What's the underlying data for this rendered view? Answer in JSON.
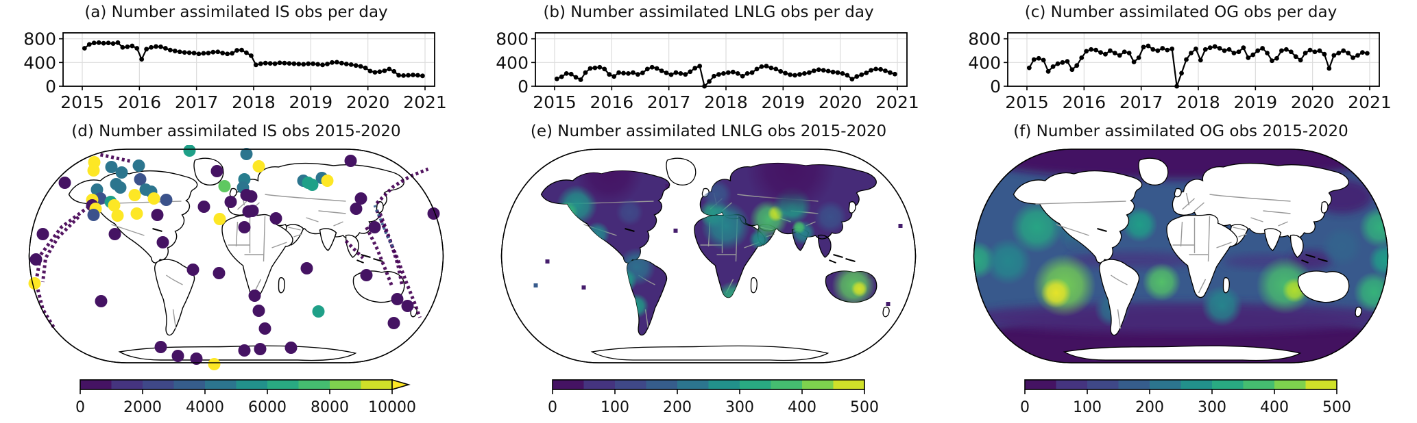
{
  "figure": {
    "background": "#ffffff"
  },
  "panels": {
    "a": {
      "title": "(a) Number assimilated IS obs per day"
    },
    "b": {
      "title": "(b) Number assimilated LNLG obs per day"
    },
    "c": {
      "title": "(c) Number assimilated OG obs per day"
    },
    "d": {
      "title": "(d) Number assimilated IS obs 2015-2020"
    },
    "e": {
      "title": "(e) Number assimilated LNLG obs 2015-2020"
    },
    "f": {
      "title": "(f) Number assimilated OG obs 2015-2020"
    }
  },
  "colors": {
    "line": "#000000",
    "grid": "#dcdcdc",
    "axis": "#000000",
    "coast": "#000000",
    "border_gray": "#999999",
    "track_purple": "#440154",
    "track_blue": "#355f8d",
    "viridis_stops": [
      [
        0,
        "#440154"
      ],
      [
        0.14,
        "#46327e"
      ],
      [
        0.27,
        "#3e4c8a"
      ],
      [
        0.4,
        "#31688e"
      ],
      [
        0.5,
        "#26828e"
      ],
      [
        0.6,
        "#1fa088"
      ],
      [
        0.72,
        "#36b779"
      ],
      [
        0.83,
        "#6ece58"
      ],
      [
        0.92,
        "#b5de2b"
      ],
      [
        1,
        "#fde725"
      ]
    ]
  },
  "chart_data": [
    {
      "id": "a",
      "type": "line",
      "title": "(a) Number assimilated IS obs per day",
      "x_ticks": [
        2015,
        2016,
        2017,
        2018,
        2019,
        2020,
        2021
      ],
      "y_ticks": [
        0,
        400,
        800
      ],
      "ylim": [
        0,
        900
      ],
      "x_start": 2015.04,
      "x_step": 0.083333,
      "values": [
        640,
        705,
        730,
        735,
        725,
        730,
        720,
        735,
        655,
        665,
        680,
        640,
        455,
        625,
        655,
        670,
        665,
        640,
        610,
        595,
        580,
        570,
        565,
        560,
        545,
        555,
        560,
        575,
        580,
        560,
        545,
        555,
        605,
        610,
        565,
        515,
        360,
        380,
        390,
        385,
        380,
        395,
        390,
        385,
        380,
        375,
        370,
        380,
        380,
        370,
        360,
        375,
        400,
        405,
        390,
        375,
        365,
        350,
        335,
        310,
        255,
        235,
        245,
        260,
        290,
        250,
        185,
        180,
        185,
        190,
        185,
        175
      ]
    },
    {
      "id": "b",
      "type": "line",
      "title": "(b) Number assimilated LNLG obs per day",
      "x_ticks": [
        2015,
        2016,
        2017,
        2018,
        2019,
        2020,
        2021
      ],
      "y_ticks": [
        0,
        400,
        800
      ],
      "ylim": [
        0,
        900
      ],
      "x_start": 2015.04,
      "x_step": 0.083333,
      "values": [
        125,
        160,
        215,
        205,
        150,
        110,
        230,
        300,
        310,
        320,
        290,
        200,
        165,
        230,
        220,
        215,
        230,
        200,
        225,
        290,
        320,
        300,
        260,
        225,
        195,
        230,
        215,
        200,
        245,
        305,
        340,
        0,
        80,
        170,
        200,
        215,
        230,
        240,
        215,
        170,
        215,
        230,
        290,
        330,
        340,
        310,
        290,
        250,
        220,
        195,
        185,
        200,
        215,
        230,
        260,
        280,
        270,
        255,
        240,
        230,
        215,
        185,
        120,
        165,
        195,
        225,
        270,
        290,
        285,
        260,
        230,
        205
      ]
    },
    {
      "id": "c",
      "type": "line",
      "title": "(c) Number assimilated OG obs per day",
      "x_ticks": [
        2015,
        2016,
        2017,
        2018,
        2019,
        2020,
        2021
      ],
      "y_ticks": [
        0,
        400,
        800
      ],
      "ylim": [
        0,
        900
      ],
      "x_start": 2015.04,
      "x_step": 0.083333,
      "values": [
        310,
        450,
        470,
        440,
        250,
        330,
        380,
        400,
        420,
        280,
        350,
        480,
        590,
        620,
        610,
        570,
        540,
        600,
        560,
        520,
        580,
        560,
        410,
        480,
        660,
        680,
        620,
        600,
        640,
        610,
        630,
        0,
        220,
        450,
        560,
        630,
        440,
        620,
        650,
        670,
        640,
        600,
        620,
        560,
        580,
        650,
        480,
        530,
        600,
        640,
        560,
        430,
        470,
        600,
        620,
        580,
        500,
        440,
        560,
        610,
        580,
        600,
        540,
        300,
        520,
        560,
        600,
        560,
        480,
        520,
        570,
        555
      ]
    },
    {
      "id": "d",
      "type": "scatter_map",
      "title": "(d) Number assimilated IS obs 2015-2020",
      "colorbar": {
        "min": 0,
        "max": 10000,
        "ticks": [
          0,
          2000,
          4000,
          6000,
          8000,
          10000
        ],
        "extend": "max"
      },
      "dots": [
        [
          242,
          8,
          6000
        ],
        [
          325,
          13,
          4500
        ],
        [
          343,
          31,
          10000
        ],
        [
          103,
          25,
          10000
        ],
        [
          102,
          37,
          10000
        ],
        [
          128,
          32,
          4500
        ],
        [
          143,
          40,
          4500
        ],
        [
          168,
          30,
          4500
        ],
        [
          170,
          50,
          3000
        ],
        [
          135,
          57,
          4500
        ],
        [
          141,
          62,
          4500
        ],
        [
          178,
          65,
          4500
        ],
        [
          186,
          68,
          4500
        ],
        [
          107,
          65,
          4500
        ],
        [
          112,
          78,
          3000
        ],
        [
          127,
          83,
          6000
        ],
        [
          132,
          88,
          10000
        ],
        [
          162,
          73,
          10000
        ],
        [
          190,
          78,
          10000
        ],
        [
          208,
          80,
          3000
        ],
        [
          100,
          80,
          10000
        ],
        [
          100,
          88,
          500
        ],
        [
          105,
          93,
          10000
        ],
        [
          102,
          102,
          3000
        ],
        [
          137,
          103,
          10000
        ],
        [
          165,
          100,
          10000
        ],
        [
          195,
          102,
          500
        ],
        [
          133,
          130,
          500
        ],
        [
          203,
          142,
          500
        ],
        [
          60,
          55,
          500
        ],
        [
          28,
          130,
          500
        ],
        [
          18,
          167,
          500
        ],
        [
          16,
          202,
          10000
        ],
        [
          113,
          228,
          500
        ],
        [
          247,
          182,
          500
        ],
        [
          285,
          187,
          500
        ],
        [
          263,
          90,
          500
        ],
        [
          282,
          38,
          500
        ],
        [
          293,
          60,
          8000
        ],
        [
          322,
          50,
          4800
        ],
        [
          320,
          62,
          4500
        ],
        [
          325,
          73,
          500
        ],
        [
          332,
          75,
          500
        ],
        [
          302,
          83,
          500
        ],
        [
          334,
          96,
          500
        ],
        [
          328,
          97,
          500
        ],
        [
          286,
          108,
          10000
        ],
        [
          322,
          120,
          500
        ],
        [
          368,
          107,
          500
        ],
        [
          408,
          52,
          4500
        ],
        [
          415,
          55,
          6000
        ],
        [
          435,
          48,
          4500
        ],
        [
          443,
          52,
          10000
        ],
        [
          421,
          58,
          6000
        ],
        [
          477,
          23,
          500
        ],
        [
          492,
          78,
          500
        ],
        [
          485,
          93,
          500
        ],
        [
          512,
          120,
          500
        ],
        [
          598,
          100,
          500
        ],
        [
          413,
          180,
          500
        ],
        [
          337,
          220,
          500
        ],
        [
          343,
          242,
          500
        ],
        [
          430,
          243,
          6000
        ],
        [
          352,
          268,
          500
        ],
        [
          545,
          225,
          500
        ],
        [
          540,
          260,
          500
        ],
        [
          500,
          190,
          500
        ],
        [
          560,
          235,
          500
        ],
        [
          200,
          295,
          500
        ],
        [
          225,
          308,
          500
        ],
        [
          252,
          312,
          500
        ],
        [
          322,
          300,
          500
        ],
        [
          345,
          298,
          500
        ],
        [
          390,
          296,
          500
        ],
        [
          278,
          320,
          10000
        ]
      ],
      "tracks": [
        [
          [
            112,
            14
          ],
          [
            158,
            24
          ]
        ],
        [
          [
            95,
            90
          ],
          [
            55,
            120
          ],
          [
            25,
            160
          ],
          [
            18,
            200
          ],
          [
            28,
            240
          ],
          [
            45,
            268
          ]
        ],
        [
          [
            80,
            105
          ],
          [
            50,
            135
          ],
          [
            32,
            165
          ],
          [
            28,
            200
          ]
        ],
        [
          [
            515,
            85
          ],
          [
            540,
            60
          ],
          [
            565,
            45
          ],
          [
            590,
            35
          ]
        ],
        [
          [
            515,
            95
          ],
          [
            530,
            130
          ],
          [
            545,
            165
          ],
          [
            558,
            200
          ],
          [
            570,
            230
          ],
          [
            578,
            252
          ]
        ],
        [
          [
            520,
            100
          ],
          [
            535,
            140
          ],
          [
            546,
            175
          ],
          [
            552,
            205
          ]
        ],
        [
          [
            500,
            120
          ],
          [
            515,
            150
          ],
          [
            527,
            180
          ],
          [
            538,
            208
          ]
        ],
        [
          [
            470,
            140
          ],
          [
            482,
            152
          ],
          [
            495,
            165
          ]
        ]
      ],
      "track_blue_segment": [
        [
          512,
          88
        ],
        [
          522,
          112
        ],
        [
          530,
          132
        ],
        [
          540,
          152
        ]
      ]
    },
    {
      "id": "e",
      "type": "grid_map",
      "title": "(e) Number assimilated LNLG obs 2015-2020",
      "colorbar": {
        "min": 0,
        "max": 500,
        "ticks": [
          0,
          100,
          200,
          300,
          400,
          500
        ]
      },
      "land_base_value": 60,
      "hotspots": [
        [
          118,
          88,
          30,
          280
        ],
        [
          104,
          98,
          16,
          360
        ],
        [
          148,
          130,
          18,
          260
        ],
        [
          195,
          98,
          20,
          130
        ],
        [
          205,
          178,
          28,
          220
        ],
        [
          188,
          198,
          18,
          300
        ],
        [
          205,
          235,
          18,
          300
        ],
        [
          318,
          100,
          22,
          320
        ],
        [
          335,
          118,
          36,
          260
        ],
        [
          385,
          138,
          16,
          280
        ],
        [
          345,
          225,
          26,
          340
        ],
        [
          350,
          230,
          10,
          480
        ],
        [
          398,
          108,
          28,
          380
        ],
        [
          408,
          100,
          12,
          470
        ],
        [
          432,
          88,
          28,
          300
        ],
        [
          448,
          128,
          18,
          260
        ],
        [
          442,
          120,
          10,
          380
        ],
        [
          322,
          72,
          22,
          160
        ],
        [
          488,
          105,
          24,
          150
        ],
        [
          522,
          205,
          32,
          400
        ],
        [
          530,
          210,
          12,
          480
        ],
        [
          165,
          40,
          50,
          25
        ],
        [
          430,
          35,
          65,
          25
        ],
        [
          505,
          140,
          20,
          60
        ],
        [
          560,
          95,
          18,
          60
        ]
      ],
      "stray_cells": [
        [
          58,
          205,
          170
        ],
        [
          128,
          208,
          40
        ],
        [
          262,
          125,
          40
        ],
        [
          545,
          192,
          40
        ],
        [
          572,
          232,
          40
        ],
        [
          590,
          118,
          40
        ],
        [
          75,
          170,
          40
        ],
        [
          250,
          60,
          40
        ]
      ]
    },
    {
      "id": "f",
      "type": "grid_map",
      "title": "(f) Number assimilated OG obs 2015-2020",
      "colorbar": {
        "min": 0,
        "max": 500,
        "ticks": [
          0,
          100,
          200,
          300,
          400,
          500
        ]
      },
      "ocean_base_value": 165,
      "dark_bands": [
        [
          310,
          14,
          310,
          36,
          20
        ],
        [
          310,
          292,
          320,
          50,
          15
        ],
        [
          310,
          252,
          320,
          22,
          60
        ],
        [
          240,
          168,
          95,
          12,
          90
        ],
        [
          432,
          170,
          60,
          10,
          100
        ],
        [
          545,
          75,
          45,
          25,
          50
        ],
        [
          500,
          168,
          30,
          14,
          60
        ],
        [
          170,
          140,
          22,
          10,
          80
        ]
      ],
      "hotspots": [
        [
          140,
          205,
          46,
          420
        ],
        [
          128,
          216,
          22,
          490
        ],
        [
          100,
          120,
          38,
          320
        ],
        [
          170,
          112,
          48,
          240
        ],
        [
          250,
          116,
          26,
          300
        ],
        [
          282,
          200,
          28,
          390
        ],
        [
          462,
          205,
          42,
          380
        ],
        [
          476,
          212,
          18,
          460
        ],
        [
          12,
          168,
          28,
          330
        ],
        [
          608,
          168,
          24,
          300
        ],
        [
          58,
          170,
          34,
          260
        ],
        [
          600,
          120,
          30,
          350
        ],
        [
          592,
          215,
          30,
          360
        ],
        [
          370,
          235,
          30,
          260
        ],
        [
          210,
          240,
          26,
          220
        ],
        [
          545,
          148,
          30,
          190
        ]
      ]
    }
  ]
}
